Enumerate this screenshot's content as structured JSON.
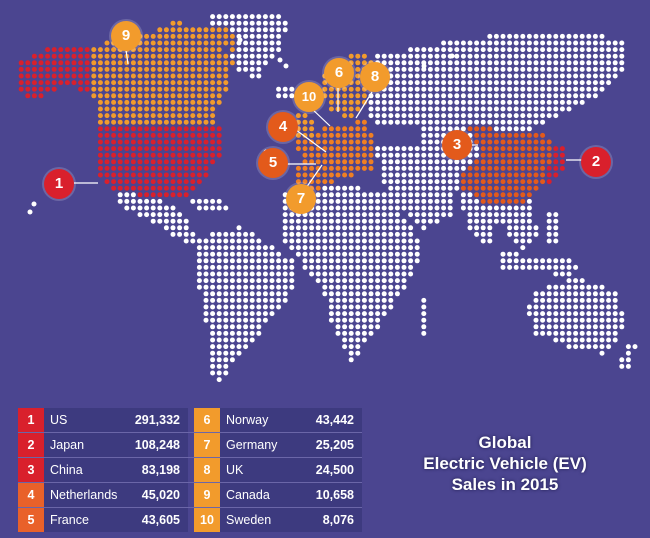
{
  "map": {
    "title_lines": [
      "Global",
      "Electric Vehicle (EV)",
      "Sales in 2015"
    ],
    "colors": {
      "background": "#4b4590",
      "land": "#ffffff",
      "red": "#d9202c",
      "dark_orange": "#e35a1b",
      "orange": "#f07f23",
      "light_orange": "#f29b2c"
    },
    "badges": [
      {
        "rank": "1",
        "color": "#d9202c"
      },
      {
        "rank": "2",
        "color": "#d9202c"
      },
      {
        "rank": "3",
        "color": "#e35a1b"
      },
      {
        "rank": "4",
        "color": "#e35a1b"
      },
      {
        "rank": "5",
        "color": "#e35a1b"
      },
      {
        "rank": "6",
        "color": "#f29b2c"
      },
      {
        "rank": "7",
        "color": "#f29b2c"
      },
      {
        "rank": "8",
        "color": "#f29b2c"
      },
      {
        "rank": "9",
        "color": "#f29b2c"
      },
      {
        "rank": "10",
        "color": "#f29b2c"
      }
    ]
  },
  "table": {
    "rows": [
      {
        "left": {
          "rank": "1",
          "country": "US",
          "sales": "291,332",
          "color": "#d9202c"
        },
        "right": {
          "rank": "6",
          "country": "Norway",
          "sales": "43,442",
          "color": "#f29b2c"
        }
      },
      {
        "left": {
          "rank": "2",
          "country": "Japan",
          "sales": "108,248",
          "color": "#d9202c"
        },
        "right": {
          "rank": "7",
          "country": "Germany",
          "sales": "25,205",
          "color": "#f29b2c"
        }
      },
      {
        "left": {
          "rank": "3",
          "country": "China",
          "sales": "83,198",
          "color": "#d9202c"
        },
        "right": {
          "rank": "8",
          "country": "UK",
          "sales": "24,500",
          "color": "#f29b2c"
        }
      },
      {
        "left": {
          "rank": "4",
          "country": "Netherlands",
          "sales": "45,020",
          "color": "#e9612a"
        },
        "right": {
          "rank": "9",
          "country": "Canada",
          "sales": "10,658",
          "color": "#f29b2c"
        }
      },
      {
        "left": {
          "rank": "5",
          "country": "France",
          "sales": "43,605",
          "color": "#e9612a"
        },
        "right": {
          "rank": "10",
          "country": "Sweden",
          "sales": "8,076",
          "color": "#f29b2c"
        }
      }
    ]
  }
}
